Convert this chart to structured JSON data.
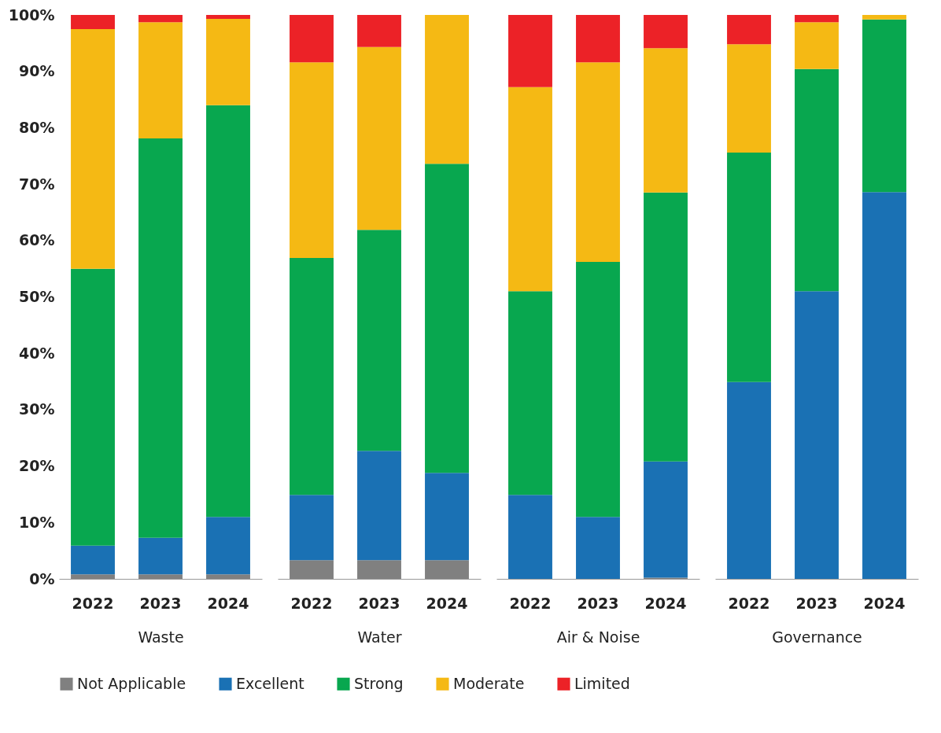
{
  "chart_data": [
    {
      "type": "bar",
      "stacked": true,
      "xlabel": "Waste",
      "categories": [
        "2022",
        "2023",
        "2024"
      ],
      "ylim": [
        0,
        100
      ],
      "yticks": [
        {
          "value": 0,
          "label": "0%"
        },
        {
          "value": 10,
          "label": "10%"
        },
        {
          "value": 20,
          "label": "20%"
        },
        {
          "value": 30,
          "label": "30%"
        },
        {
          "value": 40,
          "label": "40%"
        },
        {
          "value": 50,
          "label": "50%"
        },
        {
          "value": 60,
          "label": "60%"
        },
        {
          "value": 70,
          "label": "70%"
        },
        {
          "value": 80,
          "label": "80%"
        },
        {
          "value": 90,
          "label": "90%"
        },
        {
          "value": 100,
          "label": "100%"
        }
      ],
      "grid": false,
      "legend": "bottom",
      "series": [
        {
          "name": "Not Applicable",
          "color": "#808080",
          "values": [
            0.8,
            0.8,
            0.8
          ]
        },
        {
          "name": "Excellent",
          "color": "#1a71b4",
          "values": [
            5.1,
            6.5,
            10.2
          ]
        },
        {
          "name": "Strong",
          "color": "#08a74f",
          "values": [
            49.1,
            70.8,
            73
          ]
        },
        {
          "name": "Moderate",
          "color": "#f5b914",
          "values": [
            42.5,
            20.6,
            15.3
          ]
        },
        {
          "name": "Limited",
          "color": "#ec2227",
          "values": [
            2.5,
            1.3,
            0.7
          ]
        }
      ]
    },
    {
      "type": "bar",
      "stacked": true,
      "xlabel": "Water",
      "categories": [
        "2022",
        "2023",
        "2024"
      ],
      "ylim": [
        0,
        100
      ],
      "tick_labels": "x",
      "grid": false,
      "legend": "bottom",
      "series": [
        {
          "name": "Not Applicable",
          "color": "#808080",
          "values": [
            3.3,
            3.3,
            3.3
          ]
        },
        {
          "name": "Excellent",
          "color": "#1a71b4",
          "values": [
            11.6,
            19.4,
            15.5
          ]
        },
        {
          "name": "Strong",
          "color": "#08a74f",
          "values": [
            42,
            39.2,
            54.8
          ]
        },
        {
          "name": "Moderate",
          "color": "#f5b914",
          "values": [
            34.7,
            32.4,
            26.4
          ]
        },
        {
          "name": "Limited",
          "color": "#ec2227",
          "values": [
            8.4,
            5.7,
            0
          ]
        }
      ]
    },
    {
      "type": "bar",
      "stacked": true,
      "xlabel": "Air & Noise",
      "categories": [
        "2022",
        "2023",
        "2024"
      ],
      "ylim": [
        0,
        100
      ],
      "tick_labels": "x",
      "grid": false,
      "legend": "bottom",
      "series": [
        {
          "name": "Not Applicable",
          "color": "#808080",
          "values": [
            0,
            0,
            0.2
          ]
        },
        {
          "name": "Excellent",
          "color": "#1a71b4",
          "values": [
            14.9,
            11,
            20.6
          ]
        },
        {
          "name": "Strong",
          "color": "#08a74f",
          "values": [
            36.1,
            45.2,
            47.7
          ]
        },
        {
          "name": "Moderate",
          "color": "#f5b914",
          "values": [
            36.2,
            35.4,
            25.6
          ]
        },
        {
          "name": "Limited",
          "color": "#ec2227",
          "values": [
            12.8,
            8.4,
            5.9
          ]
        }
      ]
    },
    {
      "type": "bar",
      "stacked": true,
      "xlabel": "Governance",
      "categories": [
        "2022",
        "2023",
        "2024"
      ],
      "ylim": [
        0,
        100
      ],
      "tick_labels": "x",
      "grid": false,
      "legend": "bottom",
      "series": [
        {
          "name": "Not Applicable",
          "color": "#808080",
          "values": [
            0,
            0,
            0
          ]
        },
        {
          "name": "Excellent",
          "color": "#1a71b4",
          "values": [
            34.9,
            51,
            68.6
          ]
        },
        {
          "name": "Strong",
          "color": "#08a74f",
          "values": [
            40.7,
            39.4,
            30.6
          ]
        },
        {
          "name": "Moderate",
          "color": "#f5b914",
          "values": [
            19.2,
            8.3,
            0.8
          ]
        },
        {
          "name": "Limited",
          "color": "#ec2227",
          "values": [
            5.2,
            1.3,
            0
          ]
        }
      ]
    }
  ]
}
